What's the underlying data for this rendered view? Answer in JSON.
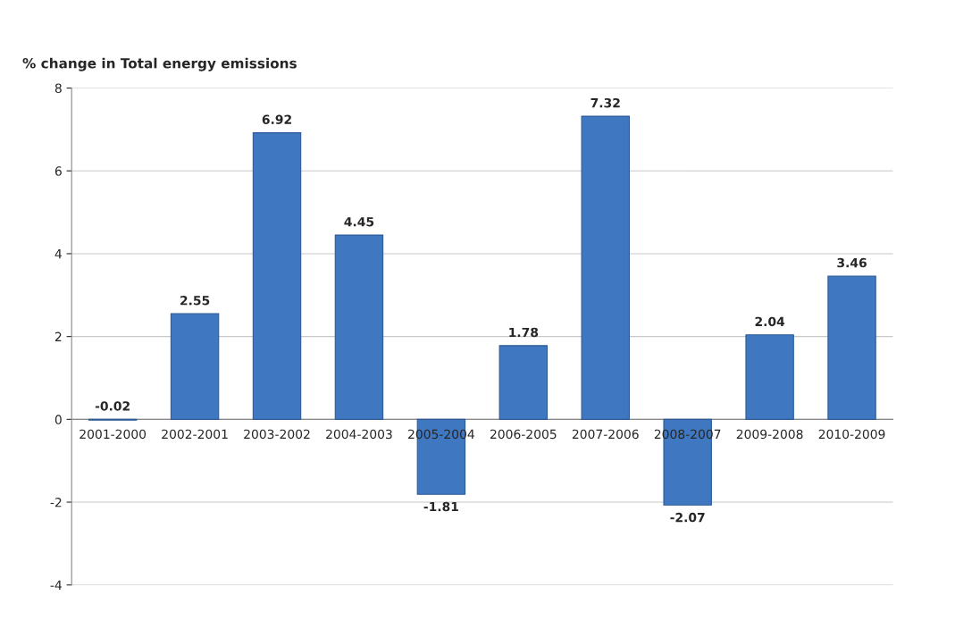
{
  "chart_data": {
    "type": "bar",
    "title": "% change in Total energy emissions",
    "categories": [
      "2001-2000",
      "2002-2001",
      "2003-2002",
      "2004-2003",
      "2005-2004",
      "2006-2005",
      "2007-2006",
      "2008-2007",
      "2009-2008",
      "2010-2009"
    ],
    "values": [
      -0.02,
      2.55,
      6.92,
      4.45,
      -1.81,
      1.78,
      7.32,
      -2.07,
      2.04,
      3.46
    ],
    "color": "#3f78c0",
    "ylim": [
      -4,
      8
    ],
    "yticks": [
      -4,
      -2,
      0,
      2,
      4,
      6,
      8
    ],
    "grid": "y",
    "data_labels": true
  }
}
